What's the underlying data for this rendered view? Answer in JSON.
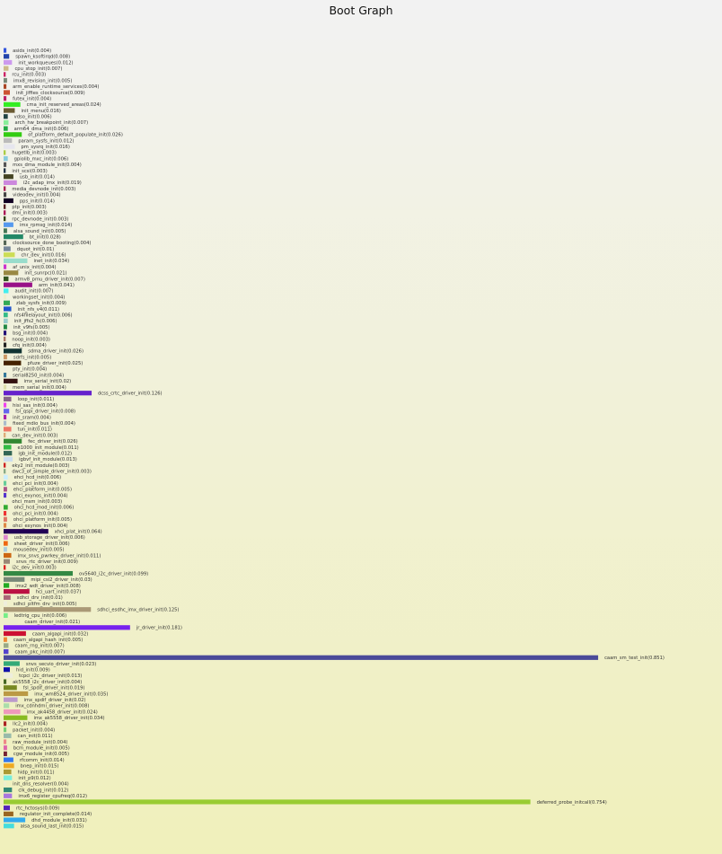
{
  "chart_data": {
    "type": "bar",
    "orientation": "horizontal",
    "title": "Boot Graph",
    "xlabel": "",
    "ylabel": "",
    "grid": false,
    "legend": "none",
    "bars": [
      {
        "label": "asids_init(0.004)",
        "start": 0.0,
        "value": 0.004,
        "color": "#3355dd"
      },
      {
        "label": "spawn_ksoftirqd(0.008)",
        "start": 0.0,
        "value": 0.008,
        "color": "#2244aa"
      },
      {
        "label": "init_workqueues(0.012)",
        "start": 0.0,
        "value": 0.012,
        "color": "#cc99ee"
      },
      {
        "label": "cpu_stop_init(0.007)",
        "start": 0.0,
        "value": 0.007,
        "color": "#ccbb88"
      },
      {
        "label": "rcu_init(0.003)",
        "start": 0.0,
        "value": 0.003,
        "color": "#cc2266"
      },
      {
        "label": "imx8_revision_init(0.005)",
        "start": 0.0,
        "value": 0.005,
        "color": "#778877"
      },
      {
        "label": "arm_enable_runtime_services(0.004)",
        "start": 0.0,
        "value": 0.004,
        "color": "#aa4422"
      },
      {
        "label": "init_jiffies_clocksource(0.009)",
        "start": 0.0,
        "value": 0.009,
        "color": "#cc5533"
      },
      {
        "label": "futex_init(0.004)",
        "start": 0.0,
        "value": 0.004,
        "color": "#bb2266"
      },
      {
        "label": "cma_init_reserved_areas(0.024)",
        "start": 0.0,
        "value": 0.024,
        "color": "#33ee22"
      },
      {
        "label": "init_menu(0.016)",
        "start": 0.0,
        "value": 0.016,
        "color": "#6b5b33"
      },
      {
        "label": "vdso_init(0.006)",
        "start": 0.0,
        "value": 0.006,
        "color": "#224444"
      },
      {
        "label": "arch_hw_breakpoint_init(0.007)",
        "start": 0.0,
        "value": 0.007,
        "color": "#88ee99"
      },
      {
        "label": "arm64_dma_init(0.006)",
        "start": 0.0,
        "value": 0.006,
        "color": "#22aa44"
      },
      {
        "label": "of_platform_default_populate_init(0.026)",
        "start": 0.0,
        "value": 0.026,
        "color": "#33cc11"
      },
      {
        "label": "param_sysfs_init(0.012)",
        "start": 0.0,
        "value": 0.012,
        "color": "#bbbbbb"
      },
      {
        "label": "pm_sysrq_init(0.016)",
        "start": 0.0,
        "value": 0.016,
        "color": "#e6e6ee"
      },
      {
        "label": "hugetlb_init(0.003)",
        "start": 0.0,
        "value": 0.003,
        "color": "#aacc44"
      },
      {
        "label": "gpiolib_mxc_init(0.006)",
        "start": 0.0,
        "value": 0.006,
        "color": "#88ccdd"
      },
      {
        "label": "mxs_dma_module_init(0.004)",
        "start": 0.0,
        "value": 0.004,
        "color": "#555555"
      },
      {
        "label": "init_scsi(0.003)",
        "start": 0.0,
        "value": 0.003,
        "color": "#223344"
      },
      {
        "label": "usb_init(0.014)",
        "start": 0.0,
        "value": 0.014,
        "color": "#444422"
      },
      {
        "label": "i2c_adap_imx_init(0.019)",
        "start": 0.0,
        "value": 0.019,
        "color": "#cc88dd"
      },
      {
        "label": "media_devnode_init(0.003)",
        "start": 0.0,
        "value": 0.003,
        "color": "#aa2255"
      },
      {
        "label": "videodev_init(0.004)",
        "start": 0.0,
        "value": 0.004,
        "color": "#444444"
      },
      {
        "label": "pps_init(0.014)",
        "start": 0.0,
        "value": 0.014,
        "color": "#110022"
      },
      {
        "label": "ptp_init(0.003)",
        "start": 0.0,
        "value": 0.003,
        "color": "#552222"
      },
      {
        "label": "dmi_init(0.003)",
        "start": 0.0,
        "value": 0.003,
        "color": "#aa1155"
      },
      {
        "label": "rpc_devnode_init(0.003)",
        "start": 0.0,
        "value": 0.003,
        "color": "#334411"
      },
      {
        "label": "imx_rpmsg_init(0.014)",
        "start": 0.0,
        "value": 0.014,
        "color": "#5599ee"
      },
      {
        "label": "alsa_sound_init(0.005)",
        "start": 0.0,
        "value": 0.005,
        "color": "#447755"
      },
      {
        "label": "bt_init(0.028)",
        "start": 0.0,
        "value": 0.028,
        "color": "#228866"
      },
      {
        "label": "clocksource_done_booting(0.004)",
        "start": 0.0,
        "value": 0.004,
        "color": "#556655"
      },
      {
        "label": "dquot_init(0.01)",
        "start": 0.0,
        "value": 0.01,
        "color": "#778899"
      },
      {
        "label": "chr_dev_init(0.016)",
        "start": 0.0,
        "value": 0.016,
        "color": "#ccdd55"
      },
      {
        "label": "inet_init(0.034)",
        "start": 0.0,
        "value": 0.034,
        "color": "#99ddcc"
      },
      {
        "label": "af_unix_init(0.004)",
        "start": 0.0,
        "value": 0.004,
        "color": "#cc33cc"
      },
      {
        "label": "init_sunrpc(0.021)",
        "start": 0.0,
        "value": 0.021,
        "color": "#998844"
      },
      {
        "label": "armv8_pmu_driver_init(0.007)",
        "start": 0.0,
        "value": 0.007,
        "color": "#335522"
      },
      {
        "label": "arm_init(0.041)",
        "start": 0.0,
        "value": 0.041,
        "color": "#991188"
      },
      {
        "label": "audit_init(0.007)",
        "start": 0.0,
        "value": 0.007,
        "color": "#44eeee"
      },
      {
        "label": "workingset_init(0.004)",
        "start": 0.0,
        "value": 0.004,
        "color": "#eeeecc"
      },
      {
        "label": "zlab_sysfs_init(0.009)",
        "start": 0.0,
        "value": 0.009,
        "color": "#33aa55"
      },
      {
        "label": "init_nfs_v4(0.011)",
        "start": 0.0,
        "value": 0.011,
        "color": "#2255cc"
      },
      {
        "label": "nfs4filelayout_init(0.006)",
        "start": 0.0,
        "value": 0.006,
        "color": "#33bb88"
      },
      {
        "label": "init_jffs2_fs(0.006)",
        "start": 0.0,
        "value": 0.006,
        "color": "#99cccc"
      },
      {
        "label": "init_v9fs(0.005)",
        "start": 0.0,
        "value": 0.005,
        "color": "#228844"
      },
      {
        "label": "bsg_init(0.004)",
        "start": 0.0,
        "value": 0.004,
        "color": "#221177"
      },
      {
        "label": "noop_init(0.003)",
        "start": 0.0,
        "value": 0.003,
        "color": "#aa7766"
      },
      {
        "label": "cfq_init(0.004)",
        "start": 0.0,
        "value": 0.004,
        "color": "#222222"
      },
      {
        "label": "sdma_driver_init(0.026)",
        "start": 0.0,
        "value": 0.026,
        "color": "#113333"
      },
      {
        "label": "sdrfs_init(0.005)",
        "start": 0.0,
        "value": 0.005,
        "color": "#cc9966"
      },
      {
        "label": "pfuze_driver_init(0.025)",
        "start": 0.0,
        "value": 0.025,
        "color": "#442200"
      },
      {
        "label": "pty_init(0.004)",
        "start": 0.0,
        "value": 0.004,
        "color": "#eeeedd"
      },
      {
        "label": "serial8250_init(0.004)",
        "start": 0.0,
        "value": 0.004,
        "color": "#337799"
      },
      {
        "label": "imx_serial_init(0.02)",
        "start": 0.0,
        "value": 0.02,
        "color": "#331111"
      },
      {
        "label": "mem_serial_init(0.004)",
        "start": 0.0,
        "value": 0.004,
        "color": "#ddddaa"
      },
      {
        "label": "dcss_crtc_driver_init(0.126)",
        "start": 0.0,
        "value": 0.126,
        "color": "#6622cc"
      },
      {
        "label": "loop_init(0.011)",
        "start": 0.0,
        "value": 0.011,
        "color": "#886688"
      },
      {
        "label": "hisi_sas_init(0.004)",
        "start": 0.0,
        "value": 0.004,
        "color": "#ee44ee"
      },
      {
        "label": "fsl_qspi_driver_init(0.008)",
        "start": 0.0,
        "value": 0.008,
        "color": "#6666ee"
      },
      {
        "label": "init_sram(0.004)",
        "start": 0.0,
        "value": 0.004,
        "color": "#aa22aa"
      },
      {
        "label": "fixed_mdio_bus_init(0.004)",
        "start": 0.0,
        "value": 0.004,
        "color": "#aabbcc"
      },
      {
        "label": "tun_init(0.011)",
        "start": 0.0,
        "value": 0.011,
        "color": "#ee7766"
      },
      {
        "label": "can_dev_init(0.003)",
        "start": 0.0,
        "value": 0.003,
        "color": "#ddaa77"
      },
      {
        "label": "fec_driver_init(0.026)",
        "start": 0.0,
        "value": 0.026,
        "color": "#338833"
      },
      {
        "label": "e1000_init_module(0.011)",
        "start": 0.0,
        "value": 0.011,
        "color": "#33bb44"
      },
      {
        "label": "igb_init_module(0.012)",
        "start": 0.0,
        "value": 0.012,
        "color": "#336655"
      },
      {
        "label": "igbvf_init_module(0.013)",
        "start": 0.0,
        "value": 0.013,
        "color": "#ccddee"
      },
      {
        "label": "eky2_init_module(0.003)",
        "start": 0.0,
        "value": 0.003,
        "color": "#cc2222"
      },
      {
        "label": "dwc3_of_simple_driver_init(0.003)",
        "start": 0.0,
        "value": 0.003,
        "color": "#88aa88"
      },
      {
        "label": "ehci_hcd_init(0.006)",
        "start": 0.0,
        "value": 0.006,
        "color": "#cceeff"
      },
      {
        "label": "ehci_pci_init(0.004)",
        "start": 0.0,
        "value": 0.004,
        "color": "#66cc99"
      },
      {
        "label": "ehci_platform_init(0.005)",
        "start": 0.0,
        "value": 0.005,
        "color": "#aa5588"
      },
      {
        "label": "ehci_exynos_init(0.004)",
        "start": 0.0,
        "value": 0.004,
        "color": "#5533cc"
      },
      {
        "label": "ohci_msm_init(0.003)",
        "start": 0.0,
        "value": 0.003,
        "color": "#eeeeee"
      },
      {
        "label": "ohci_hcd_mod_init(0.006)",
        "start": 0.0,
        "value": 0.006,
        "color": "#33aa33"
      },
      {
        "label": "ohci_pci_init(0.004)",
        "start": 0.0,
        "value": 0.004,
        "color": "#ee3333"
      },
      {
        "label": "ohci_platform_init(0.005)",
        "start": 0.0,
        "value": 0.005,
        "color": "#dd7766"
      },
      {
        "label": "ohci_exynos_init(0.004)",
        "start": 0.0,
        "value": 0.004,
        "color": "#dd8844"
      },
      {
        "label": "xhci_plat_init(0.064)",
        "start": 0.0,
        "value": 0.064,
        "color": "#220055"
      },
      {
        "label": "usb_storage_driver_init(0.006)",
        "start": 0.0,
        "value": 0.006,
        "color": "#dd88cc"
      },
      {
        "label": "sheet_driver_init(0.006)",
        "start": 0.0,
        "value": 0.006,
        "color": "#ee6611"
      },
      {
        "label": "mousedev_init(0.005)",
        "start": 0.0,
        "value": 0.005,
        "color": "#aaccdd"
      },
      {
        "label": "imx_snvs_pwrkey_driver_init(0.011)",
        "start": 0.0,
        "value": 0.011,
        "color": "#cc6611"
      },
      {
        "label": "snvs_rtc_driver_init(0.009)",
        "start": 0.0,
        "value": 0.009,
        "color": "#998877"
      },
      {
        "label": "i2c_dev_init(0.003)",
        "start": 0.0,
        "value": 0.003,
        "color": "#dd2222"
      },
      {
        "label": "ov5640_i2c_driver_init(0.099)",
        "start": 0.0,
        "value": 0.099,
        "color": "#338844"
      },
      {
        "label": "mipi_csi2_driver_init(0.03)",
        "start": 0.0,
        "value": 0.03,
        "color": "#778877"
      },
      {
        "label": "imx2_wdt_driver_init(0.008)",
        "start": 0.0,
        "value": 0.008,
        "color": "#22aa22"
      },
      {
        "label": "hci_uart_init(0.037)",
        "start": 0.0,
        "value": 0.037,
        "color": "#bb1144"
      },
      {
        "label": "sdhci_drv_init(0.01)",
        "start": 0.0,
        "value": 0.01,
        "color": "#aa6677"
      },
      {
        "label": "sdhci_pltfm_drv_init(0.005)",
        "start": 0.0,
        "value": 0.005,
        "color": "#eeeedd"
      },
      {
        "label": "sdhci_esdhc_imx_driver_init(0.125)",
        "start": 0.0,
        "value": 0.125,
        "color": "#aa9977"
      },
      {
        "label": "ledtrig_cpu_init(0.006)",
        "start": 0.0,
        "value": 0.006,
        "color": "#77ee88"
      },
      {
        "label": "caam_driver_init(0.021)",
        "start": 0.0,
        "value": 0.021,
        "color": "#eeeecc"
      },
      {
        "label": "jr_driver_init(0.181)",
        "start": 0.0,
        "value": 0.181,
        "color": "#7722ee"
      },
      {
        "label": "caam_algapi_init(0.032)",
        "start": 0.0,
        "value": 0.032,
        "color": "#cc1133"
      },
      {
        "label": "caam_algapi_hash_init(0.005)",
        "start": 0.0,
        "value": 0.005,
        "color": "#ee8833"
      },
      {
        "label": "caam_rng_init(0.007)",
        "start": 0.0,
        "value": 0.007,
        "color": "#99aa88"
      },
      {
        "label": "caam_pkc_init(0.007)",
        "start": 0.0,
        "value": 0.007,
        "color": "#5544cc"
      },
      {
        "label": "caam_sm_test_init(0.851)",
        "start": 0.0,
        "value": 0.851,
        "color": "#4a4a99"
      },
      {
        "label": "snvs_secvio_driver_init(0.023)",
        "start": 0.0,
        "value": 0.023,
        "color": "#33aa77"
      },
      {
        "label": "hid_init(0.009)",
        "start": 0.0,
        "value": 0.009,
        "color": "#1111aa"
      },
      {
        "label": "tcpci_i2c_driver_init(0.013)",
        "start": 0.0,
        "value": 0.013,
        "color": "#eeeedd"
      },
      {
        "label": "ak5558_i2c_driver_init(0.004)",
        "start": 0.0,
        "value": 0.004,
        "color": "#446622"
      },
      {
        "label": "fsl_spdif_driver_init(0.019)",
        "start": 0.0,
        "value": 0.019,
        "color": "#778822"
      },
      {
        "label": "imx_wm8524_driver_init(0.035)",
        "start": 0.0,
        "value": 0.035,
        "color": "#bb9944"
      },
      {
        "label": "imx_spdif_driver_init(0.02)",
        "start": 0.0,
        "value": 0.02,
        "color": "#bb99cc"
      },
      {
        "label": "imx_cdnhdmi_driver_init(0.008)",
        "start": 0.0,
        "value": 0.008,
        "color": "#aaddaa"
      },
      {
        "label": "imx_ak4458_driver_init(0.024)",
        "start": 0.0,
        "value": 0.024,
        "color": "#ee99bb"
      },
      {
        "label": "imx_ak5558_driver_init(0.034)",
        "start": 0.0,
        "value": 0.034,
        "color": "#88bb22"
      },
      {
        "label": "llc2_init(0.004)",
        "start": 0.0,
        "value": 0.004,
        "color": "#aa2222"
      },
      {
        "label": "packet_init(0.004)",
        "start": 0.0,
        "value": 0.004,
        "color": "#77cc77"
      },
      {
        "label": "can_init(0.011)",
        "start": 0.0,
        "value": 0.011,
        "color": "#99bbaa"
      },
      {
        "label": "raw_module_init(0.004)",
        "start": 0.0,
        "value": 0.004,
        "color": "#ee8888"
      },
      {
        "label": "bcm_module_init(0.005)",
        "start": 0.0,
        "value": 0.005,
        "color": "#dd66aa"
      },
      {
        "label": "cgw_module_init(0.005)",
        "start": 0.0,
        "value": 0.005,
        "color": "#772233"
      },
      {
        "label": "rfcomm_init(0.014)",
        "start": 0.0,
        "value": 0.014,
        "color": "#3377ee"
      },
      {
        "label": "bnep_init(0.015)",
        "start": 0.0,
        "value": 0.015,
        "color": "#eeaa22"
      },
      {
        "label": "hidp_init(0.011)",
        "start": 0.0,
        "value": 0.011,
        "color": "#aa9933"
      },
      {
        "label": "init_p9(0.012)",
        "start": 0.0,
        "value": 0.012,
        "color": "#77eedd"
      },
      {
        "label": "init_dns_resolver(0.004)",
        "start": 0.0,
        "value": 0.004,
        "color": "#eeeecc"
      },
      {
        "label": "clk_debug_init(0.012)",
        "start": 0.0,
        "value": 0.012,
        "color": "#338877"
      },
      {
        "label": "imx6_register_cpufreq(0.012)",
        "start": 0.0,
        "value": 0.012,
        "color": "#aa77dd"
      },
      {
        "label": "deferred_probe_initcall(0.754)",
        "start": 0.0,
        "value": 0.754,
        "color": "#99cc33"
      },
      {
        "label": "rtc_hctosys(0.009)",
        "start": 0.0,
        "value": 0.009,
        "color": "#5522bb"
      },
      {
        "label": "regulator_init_complete(0.014)",
        "start": 0.0,
        "value": 0.014,
        "color": "#996622"
      },
      {
        "label": "dhd_module_init(0.031)",
        "start": 0.0,
        "value": 0.031,
        "color": "#33aaee"
      },
      {
        "label": "alsa_sound_last_init(0.015)",
        "start": 0.0,
        "value": 0.015,
        "color": "#44dddd"
      }
    ]
  }
}
